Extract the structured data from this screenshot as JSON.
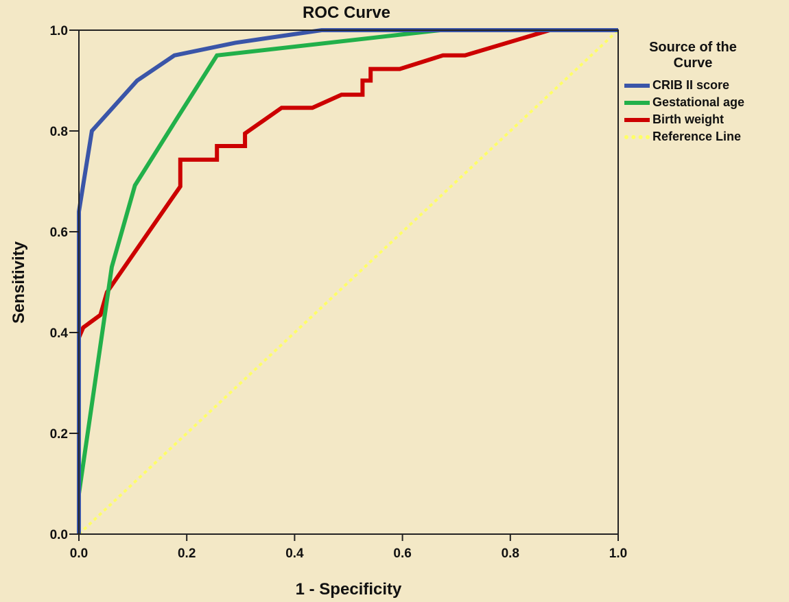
{
  "chart_data": {
    "type": "line",
    "title": "ROC Curve",
    "xlabel": "1 - Specificity",
    "ylabel": "Sensitivity",
    "xlim": [
      0,
      1
    ],
    "ylim": [
      0,
      1
    ],
    "grid": false,
    "legend_title": "Source of the Curve",
    "legend_title_lines": [
      "Source of the",
      "Curve"
    ],
    "legend_position": "right",
    "x_ticks": [
      0.0,
      0.2,
      0.4,
      0.6,
      0.8,
      1.0
    ],
    "y_ticks": [
      0.0,
      0.2,
      0.4,
      0.6,
      0.8,
      1.0
    ],
    "x_tick_labels": [
      "0.0",
      "0.2",
      "0.4",
      "0.6",
      "0.8",
      "1.0"
    ],
    "y_tick_labels": [
      "0.0",
      "0.2",
      "0.4",
      "0.6",
      "0.8",
      "1.0"
    ],
    "series": [
      {
        "name": "CRIB II score",
        "color": "#3A55A8",
        "style": "solid",
        "x": [
          0,
          0,
          0.024,
          0.108,
          0.177,
          0.29,
          0.45,
          1.0
        ],
        "y": [
          0,
          0.64,
          0.8,
          0.9,
          0.95,
          0.975,
          1.0,
          1.0
        ]
      },
      {
        "name": "Gestational age",
        "color": "#22B04A",
        "style": "solid",
        "x": [
          0,
          0,
          0.061,
          0.104,
          0.179,
          0.256,
          0.67,
          1.0
        ],
        "y": [
          0,
          0.08,
          0.53,
          0.692,
          0.82,
          0.95,
          1.0,
          1.0
        ]
      },
      {
        "name": "Birth weight",
        "color": "#CC0000",
        "style": "solid",
        "x": [
          0,
          0,
          0.008,
          0.04,
          0.052,
          0.188,
          0.188,
          0.256,
          0.256,
          0.308,
          0.308,
          0.376,
          0.433,
          0.487,
          0.526,
          0.526,
          0.541,
          0.541,
          0.595,
          0.675,
          0.716,
          0.873,
          1.0
        ],
        "y": [
          0,
          0.39,
          0.41,
          0.435,
          0.48,
          0.69,
          0.743,
          0.743,
          0.77,
          0.77,
          0.795,
          0.846,
          0.846,
          0.872,
          0.872,
          0.9,
          0.9,
          0.923,
          0.923,
          0.95,
          0.95,
          1.0,
          1.0
        ]
      },
      {
        "name": "Reference Line",
        "color": "#FFFF66",
        "style": "dotted",
        "x": [
          0,
          1
        ],
        "y": [
          0,
          1
        ]
      }
    ]
  }
}
